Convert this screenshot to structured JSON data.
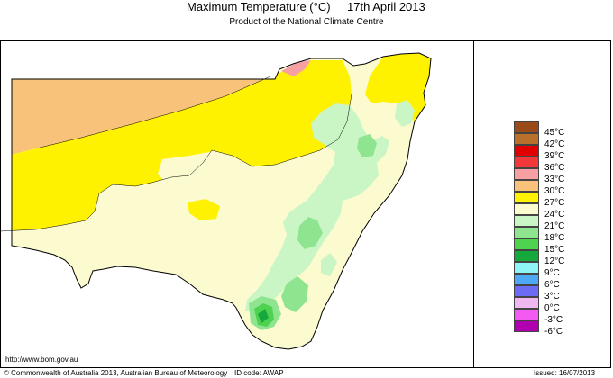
{
  "header": {
    "title": "Maximum Temperature (°C)",
    "date": "17th April 2013",
    "subtitle": "Product of the National Climate Centre"
  },
  "legend": {
    "items": [
      {
        "label": "45°C",
        "color": "#9b4a1a"
      },
      {
        "label": "42°C",
        "color": "#b8702b"
      },
      {
        "label": "39°C",
        "color": "#e00000"
      },
      {
        "label": "36°C",
        "color": "#f2383a"
      },
      {
        "label": "33°C",
        "color": "#f7a0a4"
      },
      {
        "label": "30°C",
        "color": "#f8c27a"
      },
      {
        "label": "27°C",
        "color": "#fff200"
      },
      {
        "label": "24°C",
        "color": "#fbfbcf"
      },
      {
        "label": "21°C",
        "color": "#caf5c4"
      },
      {
        "label": "18°C",
        "color": "#8fe48f"
      },
      {
        "label": "15°C",
        "color": "#4fd24f"
      },
      {
        "label": "12°C",
        "color": "#15a83d"
      },
      {
        "label": "9°C",
        "color": "#8ef4f6"
      },
      {
        "label": "6°C",
        "color": "#4da9f6"
      },
      {
        "label": "3°C",
        "color": "#6b6bf6"
      },
      {
        "label": "0°C",
        "color": "#f0b8f0"
      },
      {
        "label": "-3°C",
        "color": "#f25af2"
      },
      {
        "label": "-6°C",
        "color": "#b000b0"
      }
    ]
  },
  "map": {
    "region": "New South Wales"
  },
  "footer": {
    "url": "http://www.bom.gov.au",
    "copyright": "© Commonwealth of Australia 2013, Australian Bureau of Meteorology",
    "id_code": "ID code: AWAP",
    "issued": "Issued: 16/07/2013"
  }
}
